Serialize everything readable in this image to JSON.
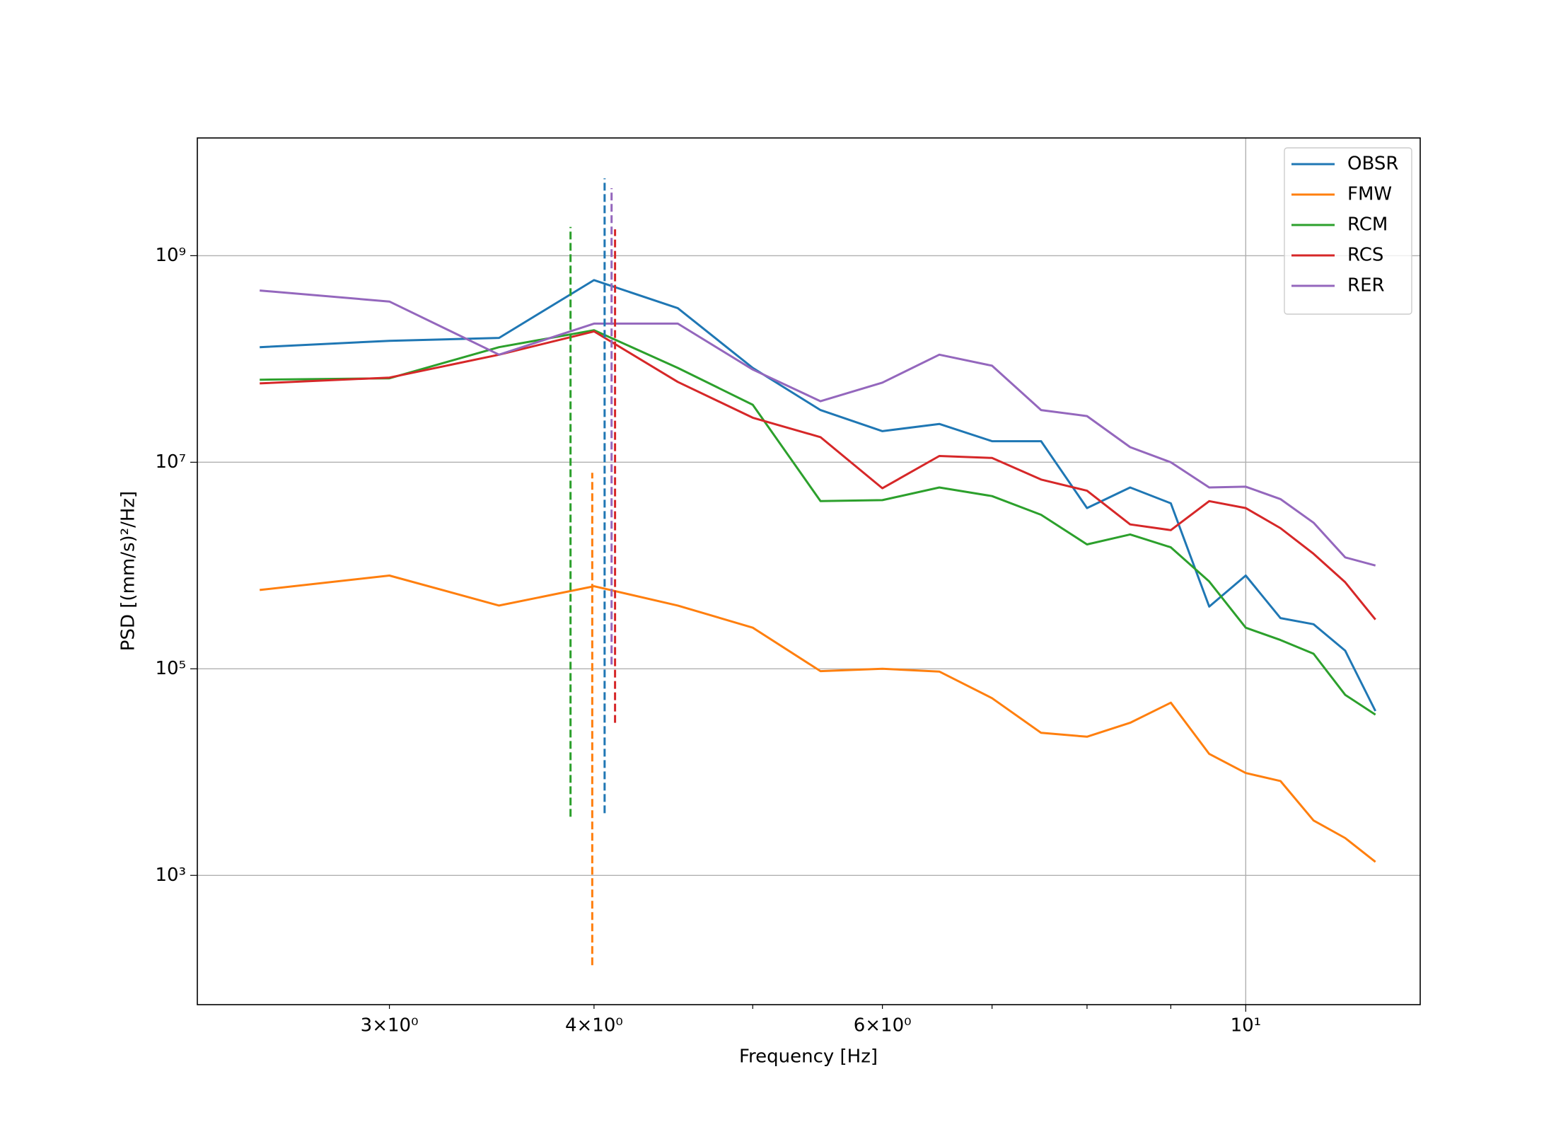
{
  "chart_data": {
    "type": "line",
    "xlabel": "Frequency [Hz]",
    "ylabel": "PSD [(mm/s)²/Hz]",
    "x_log": true,
    "y_log": true,
    "legend": "upper right",
    "grid": true,
    "xlim": [
      2.29,
      12.78
    ],
    "ylim": [
      56,
      13800000000
    ],
    "xticks": [
      {
        "value": 3,
        "label": "3×10⁰"
      },
      {
        "value": 4,
        "label": "4×10⁰"
      },
      {
        "value": 6,
        "label": "6×10⁰"
      },
      {
        "value": 10,
        "label": "10¹"
      }
    ],
    "x_minor_ticks": [
      5,
      7,
      8,
      9
    ],
    "x_grid": [
      10
    ],
    "yticks": [
      {
        "value": 1000,
        "label": "10³"
      },
      {
        "value": 100000,
        "label": "10⁵"
      },
      {
        "value": 10000000,
        "label": "10⁷"
      },
      {
        "value": 1000000000,
        "label": "10⁹"
      }
    ],
    "x": [
      2.5,
      3,
      3.5,
      4,
      4.5,
      5,
      5.5,
      6,
      6.5,
      7,
      7.5,
      8,
      8.5,
      9,
      9.5,
      10,
      10.5,
      11,
      11.5,
      12
    ],
    "series": [
      {
        "name": "OBSR",
        "color": "#1f77b4",
        "values": [
          130000000,
          150000000,
          160000000,
          580000000,
          310000000,
          82000000,
          32000000,
          20000000,
          23500000,
          16000000,
          16000000,
          3600000,
          5700000,
          4000000,
          400000,
          800000,
          310000,
          270000,
          150000,
          39000
        ],
        "peak": {
          "x": 4.06,
          "ymin": 4000,
          "ymax": 5600000000
        }
      },
      {
        "name": "FMW",
        "color": "#ff7f0e",
        "values": [
          580000,
          800000,
          410000,
          630000,
          410000,
          250000,
          95000,
          100000,
          94000,
          52000,
          24000,
          22000,
          30000,
          47000,
          15000,
          9800,
          8200,
          3400,
          2300,
          1350
        ],
        "peak": {
          "x": 3.99,
          "ymin": 135,
          "ymax": 7900000
        }
      },
      {
        "name": "RCM",
        "color": "#2ca02c",
        "values": [
          63000000,
          65000000,
          130000000,
          190000000,
          82000000,
          36000000,
          4200000,
          4300000,
          5700000,
          4700000,
          3100000,
          1600000,
          2000000,
          1500000,
          700000,
          250000,
          190000,
          140000,
          56000,
          36000
        ],
        "peak": {
          "x": 3.87,
          "ymin": 3700,
          "ymax": 1900000000
        }
      },
      {
        "name": "RCS",
        "color": "#d62728",
        "values": [
          58000000,
          66000000,
          110000000,
          185000000,
          60000000,
          27000000,
          17500000,
          5600000,
          11500000,
          11000000,
          6800000,
          5300000,
          2500000,
          2200000,
          4200000,
          3600000,
          2300000,
          1300000,
          690000,
          300000
        ],
        "peak": {
          "x": 4.12,
          "ymin": 30000,
          "ymax": 1800000000
        }
      },
      {
        "name": "RER",
        "color": "#9467bd",
        "values": [
          460000000,
          360000000,
          110000000,
          220000000,
          220000000,
          79000000,
          39000000,
          59000000,
          110000000,
          86000000,
          32000000,
          28000000,
          14000000,
          10000000,
          5700000,
          5800000,
          4400000,
          2600000,
          1200000,
          1000000
        ],
        "peak": {
          "x": 4.1,
          "ymin": 110000,
          "ymax": 4500000000
        }
      }
    ]
  }
}
